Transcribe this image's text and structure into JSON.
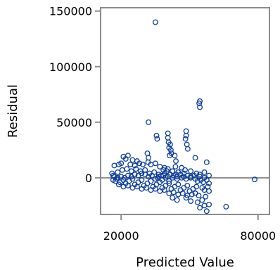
{
  "chart_data": {
    "type": "scatter",
    "title": "",
    "xlabel": "Predicted Value",
    "ylabel": "Residual",
    "xlim": [
      11000,
      85000
    ],
    "ylim": [
      -33000,
      153000
    ],
    "xticks": [
      20000,
      80000
    ],
    "xtick_labels": [
      "20000",
      "80000"
    ],
    "yticks": [
      0,
      50000,
      100000,
      150000
    ],
    "ytick_labels": [
      "0",
      "50000",
      "100000",
      "150000"
    ],
    "reference_line_y": 0,
    "grid": false,
    "legend": "none",
    "marker_color": "#0b3d9c",
    "series": [
      {
        "points": [
          [
            35000,
            140000
          ],
          [
            54500,
            69000
          ],
          [
            54200,
            67000
          ],
          [
            54500,
            63500
          ],
          [
            32000,
            50000
          ],
          [
            48500,
            42000
          ],
          [
            48500,
            38000
          ],
          [
            48200,
            35000
          ],
          [
            40500,
            40000
          ],
          [
            40500,
            36000
          ],
          [
            40800,
            32000
          ],
          [
            35500,
            38000
          ],
          [
            35800,
            35000
          ],
          [
            41500,
            30000
          ],
          [
            41000,
            27000
          ],
          [
            41800,
            25000
          ],
          [
            42000,
            22000
          ],
          [
            41200,
            20000
          ],
          [
            48800,
            30000
          ],
          [
            49200,
            26000
          ],
          [
            43500,
            20000
          ],
          [
            44000,
            15000
          ],
          [
            43800,
            10000
          ],
          [
            52500,
            18000
          ],
          [
            57500,
            14000
          ],
          [
            31500,
            22000
          ],
          [
            32000,
            18000
          ],
          [
            31800,
            14000
          ],
          [
            23000,
            20000
          ],
          [
            22000,
            17000
          ],
          [
            21000,
            19000
          ],
          [
            25000,
            16000
          ],
          [
            27000,
            15000
          ],
          [
            20000,
            13000
          ],
          [
            19000,
            12000
          ],
          [
            17000,
            11000
          ],
          [
            24000,
            12000
          ],
          [
            26000,
            11000
          ],
          [
            28000,
            13000
          ],
          [
            29500,
            12000
          ],
          [
            33000,
            12000
          ],
          [
            35000,
            13000
          ],
          [
            37000,
            10000
          ],
          [
            39000,
            9000
          ],
          [
            38500,
            7000
          ],
          [
            40500,
            8000
          ],
          [
            42500,
            6000
          ],
          [
            45000,
            5000
          ],
          [
            46500,
            9000
          ],
          [
            48000,
            7000
          ],
          [
            50500,
            6000
          ],
          [
            53000,
            4000
          ],
          [
            54500,
            3000
          ],
          [
            56500,
            5000
          ],
          [
            47500,
            4000
          ],
          [
            44000,
            3000
          ],
          [
            16000,
            4000
          ],
          [
            16500,
            2000
          ],
          [
            18500,
            5000
          ],
          [
            20500,
            7000
          ],
          [
            22500,
            8000
          ],
          [
            24500,
            6000
          ],
          [
            26500,
            8000
          ],
          [
            28500,
            6000
          ],
          [
            30500,
            7000
          ],
          [
            32500,
            4000
          ],
          [
            34500,
            5000
          ],
          [
            36500,
            3000
          ],
          [
            38500,
            2000
          ],
          [
            40500,
            1000
          ],
          [
            42500,
            0
          ],
          [
            44500,
            -1000
          ],
          [
            46500,
            0
          ],
          [
            48500,
            -1000
          ],
          [
            50500,
            0
          ],
          [
            52500,
            -1000
          ],
          [
            54500,
            1000
          ],
          [
            56500,
            0
          ],
          [
            58500,
            2000
          ],
          [
            16500,
            -2000
          ],
          [
            17500,
            -3000
          ],
          [
            18000,
            -1000
          ],
          [
            19500,
            -4000
          ],
          [
            21000,
            -2000
          ],
          [
            22000,
            -5000
          ],
          [
            23500,
            -3000
          ],
          [
            25000,
            -1000
          ],
          [
            26000,
            -6000
          ],
          [
            27500,
            -4000
          ],
          [
            29000,
            -2000
          ],
          [
            30000,
            -7000
          ],
          [
            31500,
            -5000
          ],
          [
            33000,
            -3000
          ],
          [
            34000,
            -8000
          ],
          [
            35500,
            -6000
          ],
          [
            37000,
            -4000
          ],
          [
            38000,
            -9000
          ],
          [
            39500,
            -7000
          ],
          [
            41000,
            -5000
          ],
          [
            42000,
            -10000
          ],
          [
            43500,
            -8000
          ],
          [
            45000,
            -6000
          ],
          [
            46000,
            -11000
          ],
          [
            47500,
            -9000
          ],
          [
            49000,
            -7000
          ],
          [
            50000,
            -12000
          ],
          [
            51500,
            -10000
          ],
          [
            53000,
            -8000
          ],
          [
            17000,
            1000
          ],
          [
            18500,
            0
          ],
          [
            20000,
            1000
          ],
          [
            21500,
            0
          ],
          [
            23000,
            2000
          ],
          [
            24500,
            1000
          ],
          [
            26000,
            3000
          ],
          [
            27500,
            2000
          ],
          [
            29000,
            4000
          ],
          [
            30500,
            3000
          ],
          [
            32000,
            1000
          ],
          [
            33500,
            2000
          ],
          [
            35000,
            -1000
          ],
          [
            36500,
            1000
          ],
          [
            38000,
            -2000
          ],
          [
            39500,
            0
          ],
          [
            41000,
            -3000
          ],
          [
            19000,
            -6000
          ],
          [
            21000,
            -8000
          ],
          [
            23000,
            -7000
          ],
          [
            25000,
            -9000
          ],
          [
            27000,
            -8000
          ],
          [
            29000,
            -10000
          ],
          [
            31000,
            -9000
          ],
          [
            33000,
            -11000
          ],
          [
            35000,
            -10000
          ],
          [
            37000,
            -12000
          ],
          [
            39000,
            -11000
          ],
          [
            41000,
            -14000
          ],
          [
            43000,
            -13000
          ],
          [
            45000,
            -15000
          ],
          [
            47000,
            -14000
          ],
          [
            49000,
            -16000
          ],
          [
            51000,
            -15000
          ],
          [
            42500,
            -18000
          ],
          [
            44500,
            -20000
          ],
          [
            48500,
            -18000
          ],
          [
            50500,
            -21000
          ],
          [
            53500,
            -22000
          ],
          [
            55500,
            -20000
          ],
          [
            56500,
            -25000
          ],
          [
            54500,
            -27000
          ],
          [
            57500,
            -30000
          ],
          [
            58500,
            -24000
          ],
          [
            57000,
            -17000
          ],
          [
            58500,
            -12000
          ],
          [
            58000,
            -8000
          ],
          [
            58500,
            -5000
          ],
          [
            66000,
            -26000
          ],
          [
            78500,
            -1500
          ],
          [
            36000,
            0
          ],
          [
            37500,
            2000
          ],
          [
            39000,
            4000
          ],
          [
            40000,
            6000
          ],
          [
            41500,
            3000
          ],
          [
            43000,
            2000
          ],
          [
            44500,
            1000
          ],
          [
            46000,
            3000
          ],
          [
            47500,
            1000
          ],
          [
            49000,
            2000
          ],
          [
            50500,
            1000
          ],
          [
            52000,
            2000
          ],
          [
            53500,
            -3000
          ],
          [
            55000,
            -2000
          ],
          [
            56000,
            -4000
          ],
          [
            57500,
            -2000
          ],
          [
            55500,
            -9000
          ],
          [
            56500,
            -11000
          ],
          [
            52500,
            -14000
          ],
          [
            54000,
            -16000
          ]
        ]
      }
    ]
  }
}
